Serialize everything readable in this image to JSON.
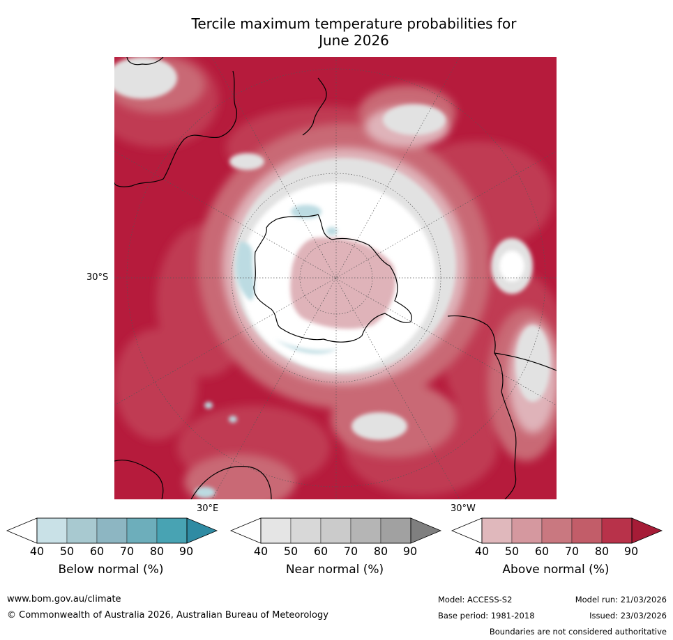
{
  "title_line1": "Tercile maximum temperature probabilities for",
  "title_line2": "June 2026",
  "grid_labels": {
    "lat": "30°S",
    "lon_left": "30°E",
    "lon_right": "30°W"
  },
  "colorbars": [
    {
      "name": "below",
      "label": "Below normal (%)",
      "ticks": [
        "40",
        "50",
        "60",
        "70",
        "80",
        "90"
      ],
      "colors": [
        "#ffffff",
        "#c9e1e7",
        "#a8c9d0",
        "#8db6c2",
        "#6daebb",
        "#48a3b3",
        "#2f8ba3"
      ]
    },
    {
      "name": "near",
      "label": "Near normal (%)",
      "ticks": [
        "40",
        "50",
        "60",
        "70",
        "80",
        "90"
      ],
      "colors": [
        "#ffffff",
        "#e5e5e5",
        "#d8d8d8",
        "#cbcbcb",
        "#b5b5b5",
        "#a1a1a1",
        "#7f7f7f"
      ]
    },
    {
      "name": "above",
      "label": "Above normal (%)",
      "ticks": [
        "40",
        "50",
        "60",
        "70",
        "80",
        "90"
      ],
      "colors": [
        "#ffffff",
        "#e0b8bc",
        "#d5989f",
        "#c97880",
        "#c25d69",
        "#b8324a",
        "#a61c37"
      ]
    }
  ],
  "map_colors": {
    "above_strong": "#b61b3c",
    "above_mid": "#c03a52",
    "above_light": "#c96975",
    "above_pale": "#dfb3b9",
    "near": "#e2e2e2",
    "below": "#bcdbe2",
    "white": "#ffffff",
    "coast": "#000000"
  },
  "footer": {
    "website": "www.bom.gov.au/climate",
    "copyright": "© Commonwealth of Australia 2026, Australian Bureau of Meteorology",
    "model": "Model: ACCESS-S2",
    "model_run": "Model run: 21/03/2026",
    "base_period": "Base period: 1981-2018",
    "issued": "Issued: 23/03/2026",
    "disclaimer": "Boundaries are not considered authoritative"
  }
}
